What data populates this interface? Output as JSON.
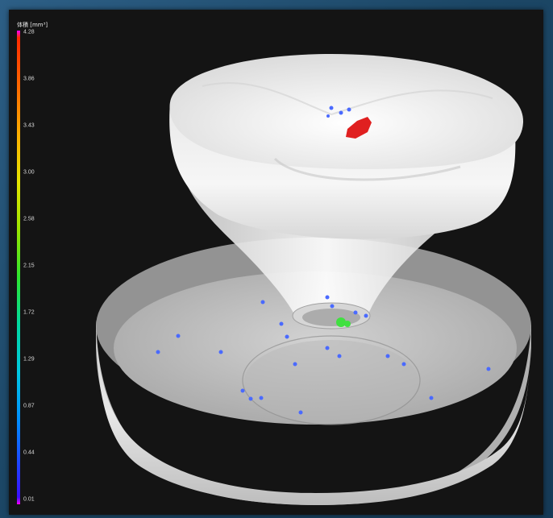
{
  "colorbar": {
    "title": "体積 [mm³]",
    "ticks": [
      "4.28",
      "3.86",
      "3.43",
      "3.00",
      "2.58",
      "2.15",
      "1.72",
      "1.29",
      "0.87",
      "0.44",
      "0.01"
    ]
  },
  "colors": {
    "background_frame": "#141414",
    "outer_gradient": "#1c4766",
    "defect_high": "#e02020",
    "defect_mid": "#40e040",
    "defect_low": "#4060ff"
  }
}
